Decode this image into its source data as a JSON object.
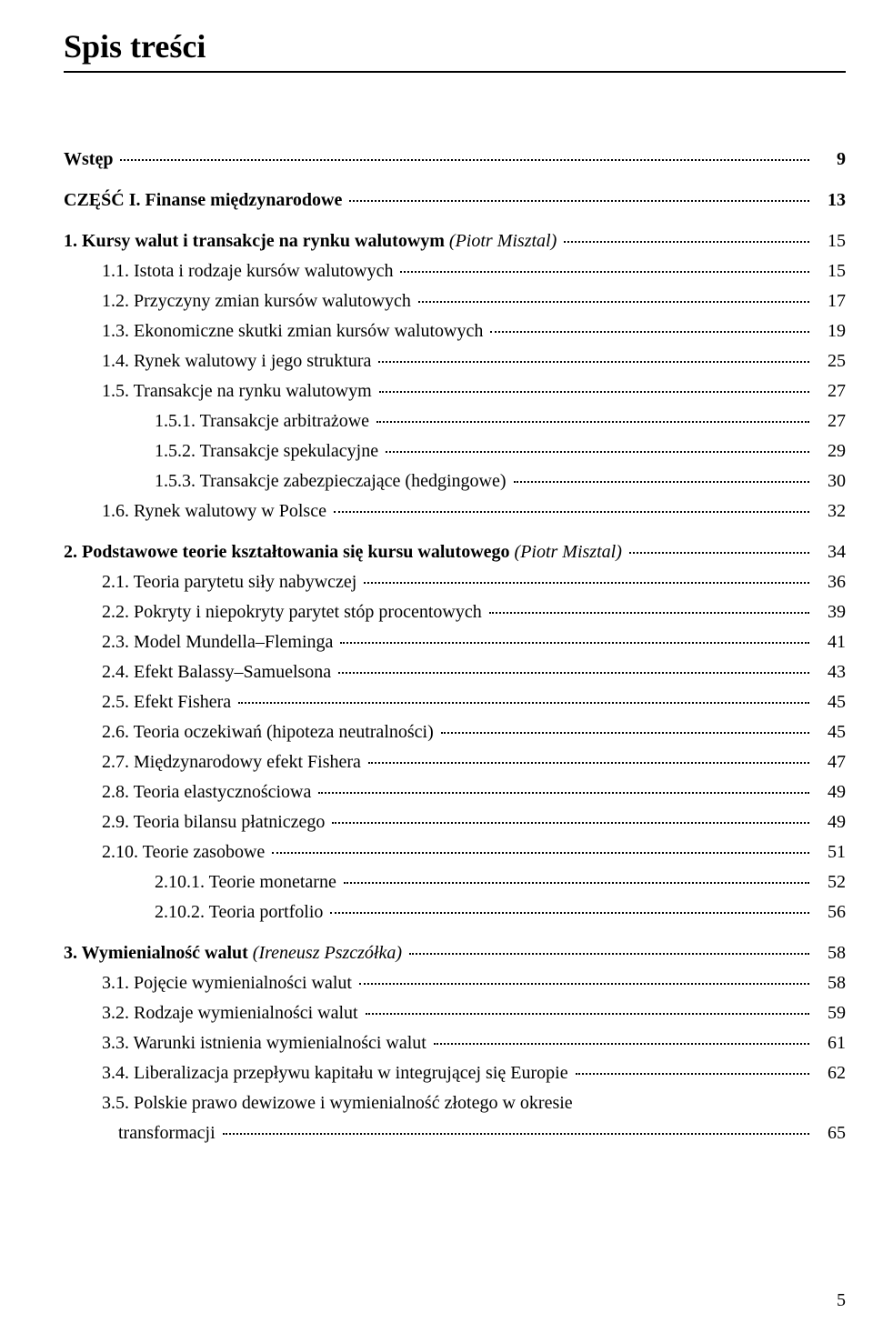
{
  "title": "Spis treści",
  "footer_page": "5",
  "entries": [
    {
      "label": "Wstęp",
      "page": "9",
      "cls": "bold indent-0 gap-top"
    },
    {
      "label": "CZĘŚĆ I. Finanse międzynarodowe",
      "page": "13",
      "cls": "bold indent-0 gap-top"
    },
    {
      "label_parts": [
        {
          "t": "1. Kursy walut i transakcje na rynku walutowym ",
          "cls": "bold"
        },
        {
          "t": "(Piotr Misztal)",
          "cls": "italic"
        }
      ],
      "page": "15",
      "cls": "indent-0 gap-top"
    },
    {
      "label": "1.1. Istota i rodzaje kursów walutowych",
      "page": "15",
      "cls": "indent-1"
    },
    {
      "label": "1.2. Przyczyny zmian kursów walutowych",
      "page": "17",
      "cls": "indent-1"
    },
    {
      "label": "1.3. Ekonomiczne skutki zmian kursów walutowych",
      "page": "19",
      "cls": "indent-1"
    },
    {
      "label": "1.4. Rynek walutowy i jego struktura",
      "page": "25",
      "cls": "indent-1"
    },
    {
      "label": "1.5. Transakcje na rynku walutowym",
      "page": "27",
      "cls": "indent-1"
    },
    {
      "label": "1.5.1. Transakcje arbitrażowe",
      "page": "27",
      "cls": "indent-2"
    },
    {
      "label": "1.5.2. Transakcje spekulacyjne",
      "page": "29",
      "cls": "indent-2"
    },
    {
      "label": "1.5.3. Transakcje zabezpieczające (hedgingowe)",
      "page": "30",
      "cls": "indent-2"
    },
    {
      "label": "1.6. Rynek walutowy w Polsce",
      "page": "32",
      "cls": "indent-1"
    },
    {
      "label_parts": [
        {
          "t": "2. Podstawowe teorie kształtowania się kursu walutowego ",
          "cls": "bold"
        },
        {
          "t": "(Piotr Misztal)",
          "cls": "italic"
        }
      ],
      "page": "34",
      "cls": "indent-0 gap-top"
    },
    {
      "label": "2.1. Teoria parytetu siły nabywczej",
      "page": "36",
      "cls": "indent-1"
    },
    {
      "label": "2.2. Pokryty i niepokryty parytet stóp procentowych",
      "page": "39",
      "cls": "indent-1"
    },
    {
      "label": "2.3. Model Mundella–Fleminga",
      "page": "41",
      "cls": "indent-1"
    },
    {
      "label": "2.4. Efekt Balassy–Samuelsona",
      "page": "43",
      "cls": "indent-1"
    },
    {
      "label": "2.5. Efekt Fishera",
      "page": "45",
      "cls": "indent-1"
    },
    {
      "label": "2.6. Teoria oczekiwań (hipoteza neutralności)",
      "page": "45",
      "cls": "indent-1"
    },
    {
      "label": "2.7. Międzynarodowy efekt Fishera",
      "page": "47",
      "cls": "indent-1"
    },
    {
      "label": "2.8. Teoria elastycznościowa",
      "page": "49",
      "cls": "indent-1"
    },
    {
      "label": "2.9. Teoria bilansu płatniczego",
      "page": "49",
      "cls": "indent-1"
    },
    {
      "label": "2.10. Teorie zasobowe",
      "page": "51",
      "cls": "indent-1"
    },
    {
      "label": "2.10.1. Teorie monetarne",
      "page": "52",
      "cls": "indent-2"
    },
    {
      "label": "2.10.2. Teoria portfolio",
      "page": "56",
      "cls": "indent-2"
    },
    {
      "label_parts": [
        {
          "t": "3. Wymienialność walut ",
          "cls": "bold"
        },
        {
          "t": "(Ireneusz Pszczółka)",
          "cls": "italic"
        }
      ],
      "page": "58",
      "cls": "indent-0 gap-top"
    },
    {
      "label": "3.1. Pojęcie wymienialności walut",
      "page": "58",
      "cls": "indent-1"
    },
    {
      "label": "3.2. Rodzaje wymienialności walut",
      "page": "59",
      "cls": "indent-1"
    },
    {
      "label": "3.3. Warunki istnienia wymienialności walut",
      "page": "61",
      "cls": "indent-1"
    },
    {
      "label": "3.4. Liberalizacja przepływu kapitału w integrującej się Europie",
      "page": "62",
      "cls": "indent-1"
    },
    {
      "label": "3.5. Polskie prawo dewizowe i wymienialność złotego w okresie",
      "cls": "indent-1",
      "nopg": true
    },
    {
      "label": "transformacji",
      "page": "65",
      "cls": "indent-2b"
    }
  ]
}
